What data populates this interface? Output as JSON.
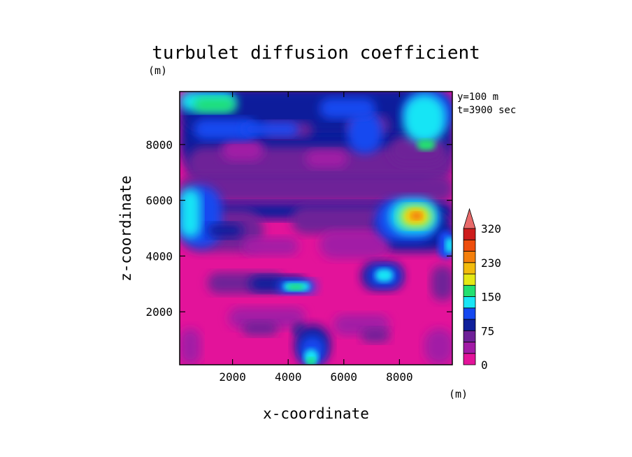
{
  "chart_data": {
    "type": "heatmap",
    "title": "turbulet diffusion coefficient",
    "xlabel": "x-coordinate",
    "ylabel": "z-coordinate",
    "x_unit": "(m)",
    "y_unit": "(m)",
    "annotations": [
      "y=100 m",
      "t=3900 sec"
    ],
    "xlim": [
      100,
      9900
    ],
    "ylim": [
      100,
      9900
    ],
    "x_ticks": [
      2000,
      4000,
      6000,
      8000
    ],
    "y_ticks": [
      2000,
      4000,
      6000,
      8000
    ],
    "colorbar": {
      "levels": [
        0,
        25,
        50,
        75,
        100,
        125,
        150,
        175,
        200,
        230,
        260,
        290,
        320
      ],
      "tick_labels": [
        "0",
        "75",
        "150",
        "230",
        "320"
      ],
      "tick_values": [
        0,
        75,
        150,
        230,
        320
      ],
      "colors": [
        "#e3139a",
        "#a21aa6",
        "#6e2098",
        "#0f1f9b",
        "#1548f0",
        "#19e5f5",
        "#22e070",
        "#e5e814",
        "#f2bb0c",
        "#f47f0b",
        "#ee4d0c",
        "#cd1c1c"
      ],
      "extend": "max"
    },
    "grid": false,
    "legend": "right"
  }
}
